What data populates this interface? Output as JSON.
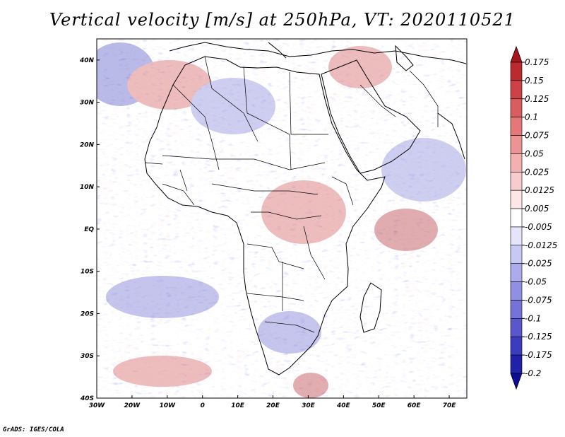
{
  "title": "Vertical velocity [m/s] at 250hPa, VT: 2020110521",
  "footer": "GrADS: IGES/COLA",
  "map": {
    "lon_range": [
      -30,
      75
    ],
    "lat_range": [
      -40,
      45
    ],
    "lon_ticks": [
      "30W",
      "20W",
      "10W",
      "0",
      "10E",
      "20E",
      "30E",
      "40E",
      "50E",
      "60E",
      "70E"
    ],
    "lon_values": [
      -30,
      -20,
      -10,
      0,
      10,
      20,
      30,
      40,
      50,
      60,
      70
    ],
    "lat_ticks": [
      "40N",
      "30N",
      "20N",
      "10N",
      "EQ",
      "10S",
      "20S",
      "30S",
      "40S"
    ],
    "lat_values": [
      40,
      30,
      20,
      10,
      0,
      -10,
      -20,
      -30,
      -40
    ]
  },
  "colorbar": {
    "labels": [
      "0.175",
      "0.15",
      "0.125",
      "0.1",
      "0.075",
      "0.05",
      "0.025",
      "0.0125",
      "0.005",
      "-0.005",
      "-0.0125",
      "-0.025",
      "-0.05",
      "-0.075",
      "-0.1",
      "-0.125",
      "-0.175",
      "-0.2"
    ],
    "colors": [
      "#a8141e",
      "#bb2a30",
      "#cc4246",
      "#d95c5e",
      "#e47878",
      "#ec9494",
      "#f2b0b0",
      "#f8cccc",
      "#fde6e6",
      "#ffffff",
      "#e4e4fb",
      "#c8c8f4",
      "#acacec",
      "#9090e2",
      "#7474d8",
      "#5858cc",
      "#3c3cbe",
      "#2020aa",
      "#0c0c96"
    ]
  },
  "colors": {
    "positive": "#e05050",
    "negative": "#5a5ad8",
    "neutral": "#ffffff"
  }
}
